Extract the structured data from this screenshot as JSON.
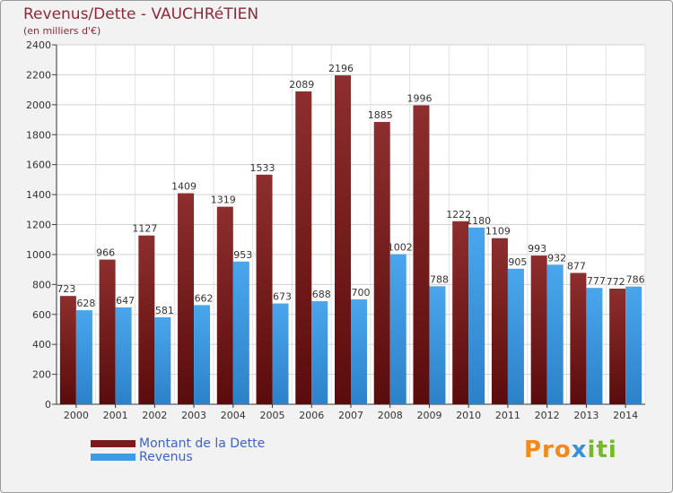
{
  "chart_data": {
    "type": "bar",
    "title": "Revenus/Dette - VAUCHRéTIEN",
    "subtitle": "(en milliers d'€)",
    "categories": [
      "2000",
      "2001",
      "2002",
      "2003",
      "2004",
      "2005",
      "2006",
      "2007",
      "2008",
      "2009",
      "2010",
      "2011",
      "2012",
      "2013",
      "2014"
    ],
    "series": [
      {
        "name": "Montant de la Dette",
        "color": "#7a1a1a",
        "labels": [
          "723",
          "966",
          "1127",
          "1409",
          "1319",
          "1533",
          "2089",
          "2196",
          "1885",
          "1996",
          "1222",
          "1109",
          "993",
          "877",
          "772"
        ],
        "values": [
          723,
          966,
          1127,
          1409,
          1319,
          1533,
          2089,
          2196,
          1885,
          1996,
          1222,
          1109,
          993,
          877,
          772
        ]
      },
      {
        "name": "Revenus",
        "color": "#3f9ae0",
        "labels": [
          "628",
          "647",
          "581",
          "662",
          "953",
          "673",
          "688",
          "700",
          "1002",
          "788",
          "1180",
          "905",
          "932",
          "777",
          "786"
        ],
        "values": [
          628,
          647,
          581,
          662,
          953,
          673,
          688,
          700,
          1002,
          788,
          1180,
          905,
          932,
          777,
          786
        ]
      }
    ],
    "ylim": [
      0,
      2400
    ],
    "yticks": [
      0,
      200,
      400,
      600,
      800,
      1000,
      1200,
      1400,
      1600,
      1800,
      2000,
      2200,
      2400
    ],
    "ytick_labels": [
      "0",
      "200",
      "400",
      "600",
      "800",
      "1000",
      "1200",
      "1400",
      "1600",
      "1800",
      "2000",
      "2200",
      "2400"
    ],
    "grid": true,
    "legend": "bottom-left"
  },
  "logo": {
    "part1": "Pro",
    "part2": "x",
    "part3": "iti"
  }
}
